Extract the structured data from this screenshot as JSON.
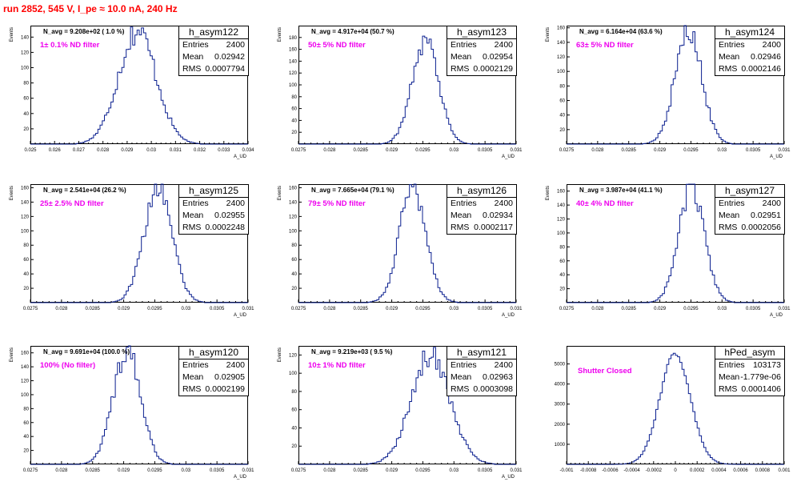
{
  "title": "run 2852,   545 V, I_pe ≈ 10.0 nA, 240 Hz",
  "chart_data": [
    {
      "type": "bar",
      "hist_name": "h_asym122",
      "stats": {
        "entries_label": "Entries",
        "entries": "2400",
        "mean_label": "Mean",
        "mean": "0.02942",
        "rms_label": "RMS",
        "rms": "0.0007794"
      },
      "navg": "N_avg = 9.208e+02 ( 1.0 %)",
      "filter": "1± 0.1% ND filter",
      "xlabel": "A_UD",
      "ylabel": "Events",
      "xlim": [
        0.025,
        0.034
      ],
      "ylim": [
        0,
        155
      ],
      "xticks": [
        0.025,
        0.026,
        0.027,
        0.028,
        0.029,
        0.03,
        0.031,
        0.032,
        0.033,
        0.034
      ],
      "xtick_labels": [
        "0.025",
        "0.026",
        "0.027",
        "0.028",
        "0.029",
        "0.03",
        "0.031",
        "0.032",
        "0.033",
        "0.034"
      ],
      "yticks": [
        20,
        40,
        60,
        80,
        100,
        120,
        140
      ],
      "ytick_labels": [
        "20",
        "40",
        "60",
        "80",
        "100",
        "120",
        "140"
      ],
      "mean_val": 0.02942,
      "rms_val": 0.0007794,
      "peak": 148
    },
    {
      "type": "bar",
      "hist_name": "h_asym123",
      "stats": {
        "entries_label": "Entries",
        "entries": "2400",
        "mean_label": "Mean",
        "mean": "0.02954",
        "rms_label": "RMS",
        "rms": "0.0002129"
      },
      "navg": "N_avg = 4.917e+04 (50.7 %)",
      "filter": "50± 5% ND filter",
      "xlabel": "A_UD",
      "ylabel": "Events",
      "xlim": [
        0.0275,
        0.031
      ],
      "ylim": [
        0,
        200
      ],
      "xticks": [
        0.0275,
        0.028,
        0.0285,
        0.029,
        0.0295,
        0.03,
        0.0305,
        0.031
      ],
      "xtick_labels": [
        "0.0275",
        "0.028",
        "0.0285",
        "0.029",
        "0.0295",
        "0.03",
        "0.0305",
        "0.031"
      ],
      "yticks": [
        20,
        40,
        60,
        80,
        100,
        120,
        140,
        160,
        180
      ],
      "ytick_labels": [
        "20",
        "40",
        "60",
        "80",
        "100",
        "120",
        "140",
        "160",
        "180"
      ],
      "mean_val": 0.02954,
      "rms_val": 0.0002129,
      "peak": 178
    },
    {
      "type": "bar",
      "hist_name": "h_asym124",
      "stats": {
        "entries_label": "Entries",
        "entries": "2400",
        "mean_label": "Mean",
        "mean": "0.02946",
        "rms_label": "RMS",
        "rms": "0.0002146"
      },
      "navg": "N_avg = 6.164e+04 (63.6 %)",
      "filter": "63± 5% ND filter",
      "xlabel": "A_UD",
      "ylabel": "Events",
      "xlim": [
        0.0275,
        0.031
      ],
      "ylim": [
        0,
        163
      ],
      "xticks": [
        0.0275,
        0.028,
        0.0285,
        0.029,
        0.0295,
        0.03,
        0.0305,
        0.031
      ],
      "xtick_labels": [
        "0.0275",
        "0.028",
        "0.0285",
        "0.029",
        "0.0295",
        "0.03",
        "0.0305",
        "0.031"
      ],
      "yticks": [
        20,
        40,
        60,
        80,
        100,
        120,
        140,
        160
      ],
      "ytick_labels": [
        "20",
        "40",
        "60",
        "80",
        "100",
        "120",
        "140",
        "160"
      ],
      "mean_val": 0.02946,
      "rms_val": 0.0002146,
      "peak": 155
    },
    {
      "type": "bar",
      "hist_name": "h_asym125",
      "stats": {
        "entries_label": "Entries",
        "entries": "2400",
        "mean_label": "Mean",
        "mean": "0.02955",
        "rms_label": "RMS",
        "rms": "0.0002248"
      },
      "navg": "N_avg = 2.541e+04 (26.2 %)",
      "filter": "25± 2.5% ND filter",
      "xlabel": "A_UD",
      "ylabel": "Events",
      "xlim": [
        0.0275,
        0.031
      ],
      "ylim": [
        0,
        165
      ],
      "xticks": [
        0.0275,
        0.028,
        0.0285,
        0.029,
        0.0295,
        0.03,
        0.0305,
        0.031
      ],
      "xtick_labels": [
        "0.0275",
        "0.028",
        "0.0285",
        "0.029",
        "0.0295",
        "0.03",
        "0.0305",
        "0.031"
      ],
      "yticks": [
        20,
        40,
        60,
        80,
        100,
        120,
        140,
        160
      ],
      "ytick_labels": [
        "20",
        "40",
        "60",
        "80",
        "100",
        "120",
        "140",
        "160"
      ],
      "mean_val": 0.02955,
      "rms_val": 0.0002248,
      "peak": 162
    },
    {
      "type": "bar",
      "hist_name": "h_asym126",
      "stats": {
        "entries_label": "Entries",
        "entries": "2400",
        "mean_label": "Mean",
        "mean": "0.02934",
        "rms_label": "RMS",
        "rms": "0.0002117"
      },
      "navg": "N_avg = 7.665e+04 (79.1 %)",
      "filter": "79± 5% ND filter",
      "xlabel": "A_UD",
      "ylabel": "Events",
      "xlim": [
        0.0275,
        0.031
      ],
      "ylim": [
        0,
        165
      ],
      "xticks": [
        0.0275,
        0.028,
        0.0285,
        0.029,
        0.0295,
        0.03,
        0.0305,
        0.031
      ],
      "xtick_labels": [
        "0.0275",
        "0.028",
        "0.0285",
        "0.029",
        "0.0295",
        "0.03",
        "0.0305",
        "0.031"
      ],
      "yticks": [
        20,
        40,
        60,
        80,
        100,
        120,
        140,
        160
      ],
      "ytick_labels": [
        "20",
        "40",
        "60",
        "80",
        "100",
        "120",
        "140",
        "160"
      ],
      "mean_val": 0.02934,
      "rms_val": 0.0002117,
      "peak": 162
    },
    {
      "type": "bar",
      "hist_name": "h_asym127",
      "stats": {
        "entries_label": "Entries",
        "entries": "2400",
        "mean_label": "Mean",
        "mean": "0.02951",
        "rms_label": "RMS",
        "rms": "0.0002056"
      },
      "navg": "N_avg = 3.987e+04 (41.1 %)",
      "filter": "40± 4% ND filter",
      "xlabel": "A_UD",
      "ylabel": "Events",
      "xlim": [
        0.0275,
        0.031
      ],
      "ylim": [
        0,
        170
      ],
      "xticks": [
        0.0275,
        0.028,
        0.0285,
        0.029,
        0.0295,
        0.03,
        0.0305,
        0.031
      ],
      "xtick_labels": [
        "0.0275",
        "0.028",
        "0.0285",
        "0.029",
        "0.0295",
        "0.03",
        "0.0305",
        "0.031"
      ],
      "yticks": [
        20,
        40,
        60,
        80,
        100,
        120,
        140,
        160
      ],
      "ytick_labels": [
        "20",
        "40",
        "60",
        "80",
        "100",
        "120",
        "140",
        "160"
      ],
      "mean_val": 0.02951,
      "rms_val": 0.0002056,
      "peak": 163
    },
    {
      "type": "bar",
      "hist_name": "h_asym120",
      "stats": {
        "entries_label": "Entries",
        "entries": "2400",
        "mean_label": "Mean",
        "mean": "0.02905",
        "rms_label": "RMS",
        "rms": "0.0002199"
      },
      "navg": "N_avg = 9.691e+04 (100.0 %)",
      "filter": "100% (No filter)",
      "xlabel": "A_UD",
      "ylabel": "Events",
      "xlim": [
        0.0275,
        0.031
      ],
      "ylim": [
        0,
        170
      ],
      "xticks": [
        0.0275,
        0.028,
        0.0285,
        0.029,
        0.0295,
        0.03,
        0.0305,
        0.031
      ],
      "xtick_labels": [
        "0.0275",
        "0.028",
        "0.0285",
        "0.029",
        "0.0295",
        "0.03",
        "0.0305",
        "0.031"
      ],
      "yticks": [
        20,
        40,
        60,
        80,
        100,
        120,
        140,
        160
      ],
      "ytick_labels": [
        "20",
        "40",
        "60",
        "80",
        "100",
        "120",
        "140",
        "160"
      ],
      "mean_val": 0.02905,
      "rms_val": 0.0002199,
      "peak": 165
    },
    {
      "type": "bar",
      "hist_name": "h_asym121",
      "stats": {
        "entries_label": "Entries",
        "entries": "2400",
        "mean_label": "Mean",
        "mean": "0.02963",
        "rms_label": "RMS",
        "rms": "0.0003098"
      },
      "navg": "N_avg = 9.219e+03 ( 9.5 %)",
      "filter": "10± 1% ND filter",
      "xlabel": "A_UD",
      "ylabel": "Events",
      "xlim": [
        0.0275,
        0.031
      ],
      "ylim": [
        0,
        130
      ],
      "xticks": [
        0.0275,
        0.028,
        0.0285,
        0.029,
        0.0295,
        0.03,
        0.0305,
        0.031
      ],
      "xtick_labels": [
        "0.0275",
        "0.028",
        "0.0285",
        "0.029",
        "0.0295",
        "0.03",
        "0.0305",
        "0.031"
      ],
      "yticks": [
        20,
        40,
        60,
        80,
        100,
        120
      ],
      "ytick_labels": [
        "20",
        "40",
        "60",
        "80",
        "100",
        "120"
      ],
      "mean_val": 0.02963,
      "rms_val": 0.0003098,
      "peak": 120
    },
    {
      "type": "bar",
      "hist_name": "hPed_asym",
      "stats": {
        "entries_label": "Entries",
        "entries": "103173",
        "mean_label": "Mean",
        "mean": "-1.779e-06",
        "rms_label": "RMS",
        "rms": "0.0001406"
      },
      "navg": "",
      "filter": "Shutter Closed",
      "xlabel": "",
      "ylabel": "",
      "xlim": [
        -0.001,
        0.001
      ],
      "ylim": [
        0,
        5900
      ],
      "xticks": [
        -0.001,
        -0.0008,
        -0.0006,
        -0.0004,
        -0.0002,
        0,
        0.0002,
        0.0004,
        0.0006,
        0.0008,
        0.001
      ],
      "xtick_labels": [
        "-0.001",
        "-0.0008",
        "-0.0006",
        "-0.0004",
        "-0.0002",
        "0",
        "0.0002",
        "0.0004",
        "0.0006",
        "0.0008",
        "0.001"
      ],
      "yticks": [
        1000,
        2000,
        3000,
        4000,
        5000
      ],
      "ytick_labels": [
        "1000",
        "2000",
        "3000",
        "4000",
        "5000"
      ],
      "mean_val": -1.779e-06,
      "rms_val": 0.0001406,
      "peak": 5500
    }
  ]
}
